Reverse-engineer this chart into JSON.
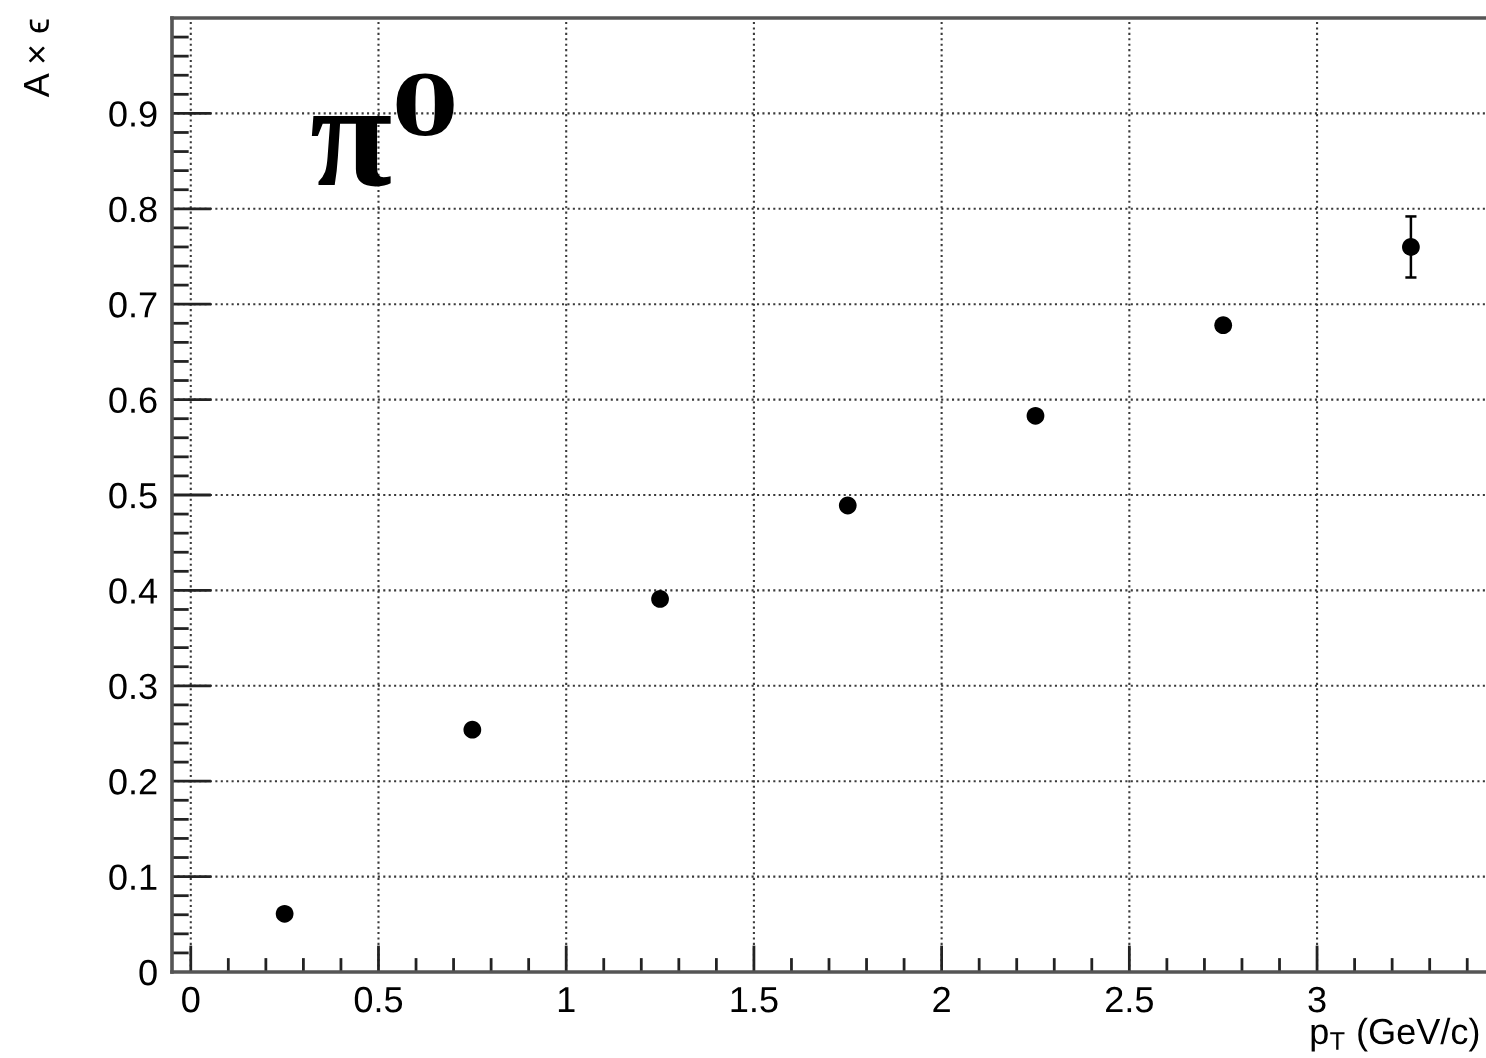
{
  "chart_data": {
    "type": "scatter",
    "x": [
      0.25,
      0.75,
      1.25,
      1.75,
      2.25,
      2.75,
      3.25
    ],
    "values": [
      0.061,
      0.254,
      0.391,
      0.489,
      0.583,
      0.678,
      0.76
    ],
    "errors": [
      null,
      null,
      null,
      null,
      null,
      null,
      0.032
    ],
    "color": "#000000",
    "marker": "circle",
    "xlabel": "p$_{T}$ (GeV/c)",
    "ylabel": "A × ϵ",
    "annotations": [
      "π⁰"
    ],
    "xlim": [
      -0.05,
      3.45
    ],
    "ylim": [
      0,
      1
    ],
    "xticks": [
      0,
      0.5,
      1,
      1.5,
      2,
      2.5,
      3,
      {
        "value": 0.1,
        "label": null
      },
      {
        "value": 0.2,
        "label": null
      },
      {
        "value": 0.3,
        "label": null
      },
      {
        "value": 0.4,
        "label": null
      },
      {
        "value": 0.6,
        "label": null
      },
      {
        "value": 0.7,
        "label": null
      },
      {
        "value": 0.8,
        "label": null
      },
      {
        "value": 0.9,
        "label": null
      },
      {
        "value": 1.1,
        "label": null
      },
      {
        "value": 1.2,
        "label": null
      },
      {
        "value": 1.3,
        "label": null
      },
      {
        "value": 1.4,
        "label": null
      },
      {
        "value": 1.6,
        "label": null
      },
      {
        "value": 1.7,
        "label": null
      },
      {
        "value": 1.8,
        "label": null
      },
      {
        "value": 1.9,
        "label": null
      },
      {
        "value": 2.1,
        "label": null
      },
      {
        "value": 2.2,
        "label": null
      },
      {
        "value": 2.3,
        "label": null
      },
      {
        "value": 2.4,
        "label": null
      },
      {
        "value": 2.6,
        "label": null
      },
      {
        "value": 2.7,
        "label": null
      },
      {
        "value": 2.8,
        "label": null
      },
      {
        "value": 2.9,
        "label": null
      },
      {
        "value": 3.1,
        "label": null
      },
      {
        "value": 3.2,
        "label": null
      },
      {
        "value": 3.3,
        "label": null
      },
      {
        "value": 3.4,
        "label": null
      }
    ],
    "yticks": [
      0,
      0.1,
      0.2,
      0.3,
      0.4,
      0.5,
      0.6,
      0.7,
      0.8,
      0.9,
      {
        "value": 0.02,
        "label": null
      },
      {
        "value": 0.04,
        "label": null
      },
      {
        "value": 0.06,
        "label": null
      },
      {
        "value": 0.08,
        "label": null
      },
      {
        "value": 0.12,
        "label": null
      },
      {
        "value": 0.14,
        "label": null
      },
      {
        "value": 0.16,
        "label": null
      },
      {
        "value": 0.18,
        "label": null
      },
      {
        "value": 0.22,
        "label": null
      },
      {
        "value": 0.24,
        "label": null
      },
      {
        "value": 0.26,
        "label": null
      },
      {
        "value": 0.28,
        "label": null
      },
      {
        "value": 0.32,
        "label": null
      },
      {
        "value": 0.34,
        "label": null
      },
      {
        "value": 0.36,
        "label": null
      },
      {
        "value": 0.38,
        "label": null
      },
      {
        "value": 0.42,
        "label": null
      },
      {
        "value": 0.44,
        "label": null
      },
      {
        "value": 0.46,
        "label": null
      },
      {
        "value": 0.48,
        "label": null
      },
      {
        "value": 0.52,
        "label": null
      },
      {
        "value": 0.54,
        "label": null
      },
      {
        "value": 0.56,
        "label": null
      },
      {
        "value": 0.58,
        "label": null
      },
      {
        "value": 0.62,
        "label": null
      },
      {
        "value": 0.64,
        "label": null
      },
      {
        "value": 0.66,
        "label": null
      },
      {
        "value": 0.68,
        "label": null
      },
      {
        "value": 0.72,
        "label": null
      },
      {
        "value": 0.74,
        "label": null
      },
      {
        "value": 0.76,
        "label": null
      },
      {
        "value": 0.78,
        "label": null
      },
      {
        "value": 0.82,
        "label": null
      },
      {
        "value": 0.84,
        "label": null
      },
      {
        "value": 0.86,
        "label": null
      },
      {
        "value": 0.88,
        "label": null
      },
      {
        "value": 0.92,
        "label": null
      },
      {
        "value": 0.94,
        "label": null
      },
      {
        "value": 0.96,
        "label": null
      },
      {
        "value": 0.98,
        "label": null
      }
    ],
    "grid": true
  }
}
